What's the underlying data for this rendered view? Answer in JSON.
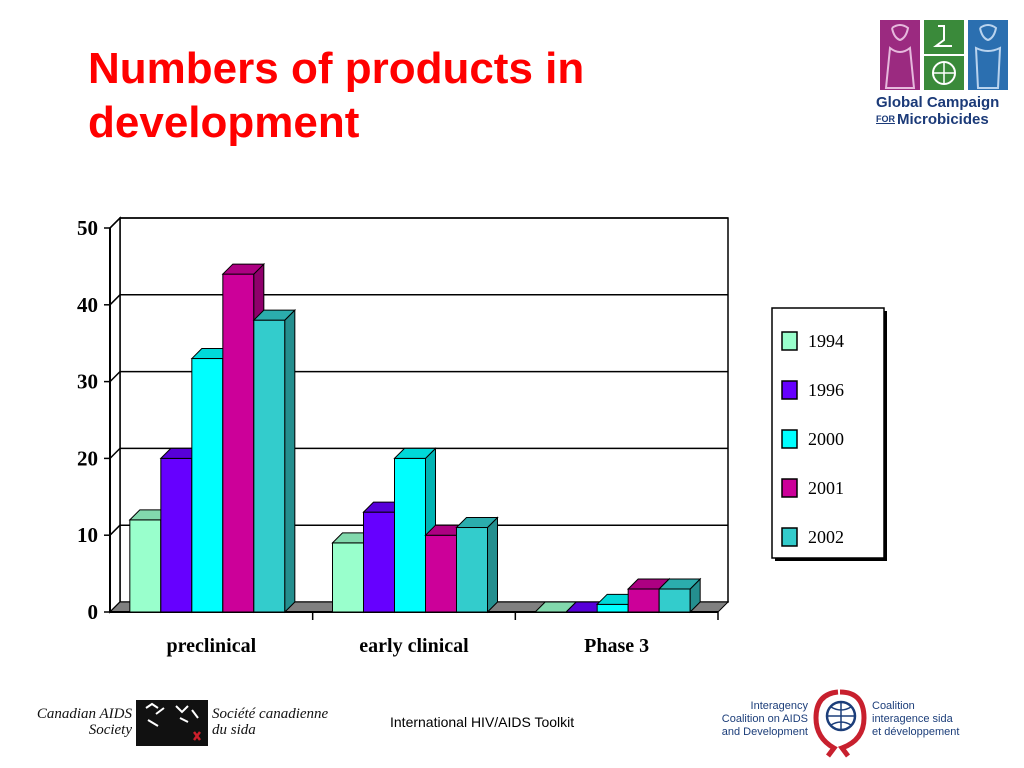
{
  "slide": {
    "title_line1": "Numbers of products in",
    "title_line2": "development",
    "footer_center": "International HIV/AIDS Toolkit"
  },
  "logos": {
    "gcm": {
      "line1": "Global Campaign",
      "for": "FOR",
      "line2": "Microbicides",
      "colors": [
        "#9b2a80",
        "#3a8a3a",
        "#2b6fb0"
      ]
    },
    "cas": {
      "en_line1": "Canadian AIDS",
      "en_line2": "Society",
      "fr_line1": "Société canadienne",
      "fr_line2": "du sida",
      "accent": "#cc1f2b"
    },
    "icad": {
      "left_line1": "Interagency",
      "left_line2": "Coalition on AIDS",
      "left_line3": "and Development",
      "right_line1": "Coalition",
      "right_line2": "interagence sida",
      "right_line3": "et développement",
      "ribbon_color": "#c8202e",
      "globe_color": "#1c3e7a"
    }
  },
  "chart_data": {
    "type": "bar",
    "title": "",
    "xlabel": "",
    "ylabel": "",
    "categories": [
      "preclinical",
      "early clinical",
      "Phase 3"
    ],
    "series": [
      {
        "name": "1994",
        "values": [
          12,
          9,
          0
        ],
        "color": "#99ffcc"
      },
      {
        "name": "1996",
        "values": [
          20,
          13,
          0
        ],
        "color": "#6600ff"
      },
      {
        "name": "2000",
        "values": [
          33,
          20,
          1
        ],
        "color": "#00ffff"
      },
      {
        "name": "2001",
        "values": [
          44,
          10,
          3
        ],
        "color": "#cc0099"
      },
      {
        "name": "2002",
        "values": [
          38,
          11,
          3
        ],
        "color": "#33cccc"
      }
    ],
    "ylim": [
      0,
      50
    ],
    "yticks": [
      0,
      10,
      20,
      30,
      40,
      50
    ],
    "grid": true,
    "three_d": true,
    "legend_position": "right"
  }
}
